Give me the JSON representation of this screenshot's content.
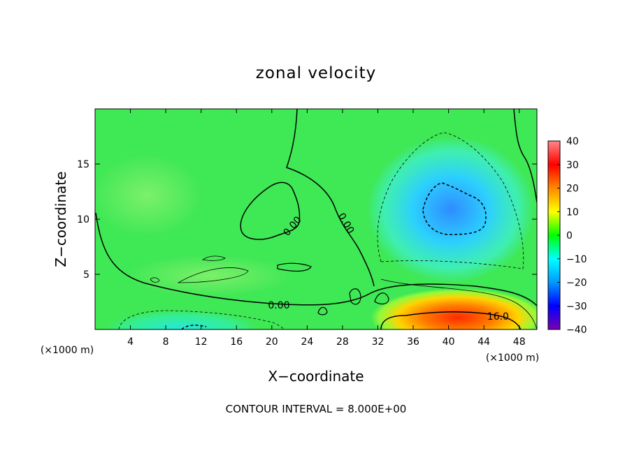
{
  "chart_data": {
    "type": "heatmap",
    "title": "zonal velocity",
    "xlabel": "X−coordinate",
    "ylabel": "Z−coordinate",
    "x_unit_left": "(×1000 m)",
    "x_unit_right": "(×1000 m)",
    "footer": "CONTOUR INTERVAL = 8.000E+00",
    "xlim": [
      0,
      50
    ],
    "ylim": [
      0,
      20
    ],
    "x_ticks": [
      4,
      8,
      12,
      16,
      20,
      24,
      28,
      32,
      36,
      40,
      44,
      48
    ],
    "y_ticks": [
      5,
      10,
      15
    ],
    "colorbar": {
      "min": -40,
      "max": 40,
      "ticks": [
        "40",
        "30",
        "20",
        "10",
        "0",
        "−10",
        "−20",
        "−30",
        "−40"
      ],
      "colors": [
        "#7a00b0",
        "#0000ff",
        "#0099ff",
        "#00ffff",
        "#00ff00",
        "#ffff00",
        "#ff8800",
        "#ff0000",
        "#ff8888"
      ]
    },
    "contour_labels": [
      {
        "text": "0.00",
        "x": 20.8,
        "y": 2.2
      },
      {
        "text": "0.00",
        "x": 22.6,
        "y": 9.5
      },
      {
        "text": "0.00",
        "x": 28.1,
        "y": 9.8
      },
      {
        "text": "16.0",
        "x": 45.6,
        "y": 1.2
      }
    ],
    "features": [
      {
        "name": "negative core",
        "x": 40,
        "y": 11,
        "value": -14
      },
      {
        "name": "positive core",
        "x": 41,
        "y": 0.7,
        "value": 24
      },
      {
        "name": "weak positive band",
        "x": 14,
        "y": 5.5,
        "value": 5
      }
    ]
  }
}
